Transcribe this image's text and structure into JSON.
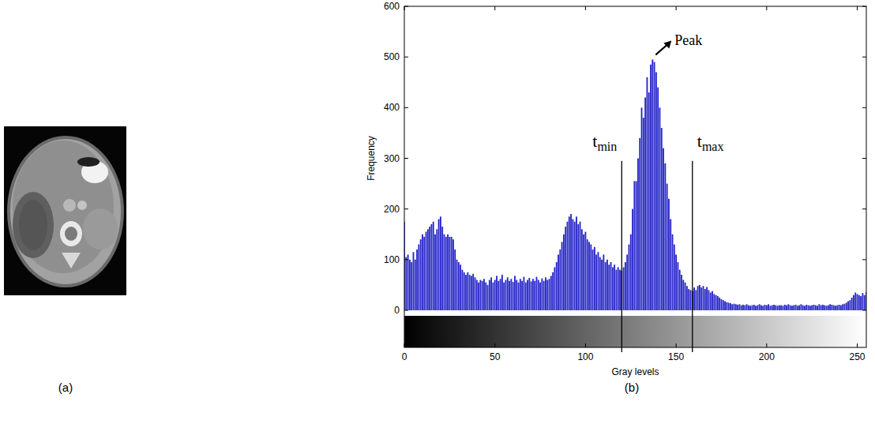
{
  "image": {
    "label": "(a)"
  },
  "chart_data": {
    "type": "histogram",
    "label": "(b)",
    "x_label": "Gray levels",
    "y_label": "Frequency",
    "color": "#2424c8",
    "xlim": [
      0,
      255
    ],
    "ylim": [
      0,
      600
    ],
    "xticks": [
      0,
      50,
      100,
      150,
      200,
      250
    ],
    "yticks": [
      0,
      100,
      200,
      300,
      400,
      500,
      600
    ],
    "annotations": [
      {
        "text": "t",
        "subscript": "min",
        "x": 120
      },
      {
        "text": "t",
        "subscript": "max",
        "x": 159
      },
      {
        "text": "Peak",
        "x": 137,
        "y": 495
      }
    ],
    "x": [
      0,
      1,
      2,
      3,
      4,
      5,
      6,
      7,
      8,
      9,
      10,
      11,
      12,
      13,
      14,
      15,
      16,
      17,
      18,
      19,
      20,
      21,
      22,
      23,
      24,
      25,
      26,
      27,
      28,
      29,
      30,
      31,
      32,
      33,
      34,
      35,
      36,
      37,
      38,
      39,
      40,
      41,
      42,
      43,
      44,
      45,
      46,
      47,
      48,
      49,
      50,
      51,
      52,
      53,
      54,
      55,
      56,
      57,
      58,
      59,
      60,
      61,
      62,
      63,
      64,
      65,
      66,
      67,
      68,
      69,
      70,
      71,
      72,
      73,
      74,
      75,
      76,
      77,
      78,
      79,
      80,
      81,
      82,
      83,
      84,
      85,
      86,
      87,
      88,
      89,
      90,
      91,
      92,
      93,
      94,
      95,
      96,
      97,
      98,
      99,
      100,
      101,
      102,
      103,
      104,
      105,
      106,
      107,
      108,
      109,
      110,
      111,
      112,
      113,
      114,
      115,
      116,
      117,
      118,
      119,
      120,
      121,
      122,
      123,
      124,
      125,
      126,
      127,
      128,
      129,
      130,
      131,
      132,
      133,
      134,
      135,
      136,
      137,
      138,
      139,
      140,
      141,
      142,
      143,
      144,
      145,
      146,
      147,
      148,
      149,
      150,
      151,
      152,
      153,
      154,
      155,
      156,
      157,
      158,
      159,
      160,
      161,
      162,
      163,
      164,
      165,
      166,
      167,
      168,
      169,
      170,
      171,
      172,
      173,
      174,
      175,
      176,
      177,
      178,
      179,
      180,
      181,
      182,
      183,
      184,
      185,
      186,
      187,
      188,
      189,
      190,
      191,
      192,
      193,
      194,
      195,
      196,
      197,
      198,
      199,
      200,
      201,
      202,
      203,
      204,
      205,
      206,
      207,
      208,
      209,
      210,
      211,
      212,
      213,
      214,
      215,
      216,
      217,
      218,
      219,
      220,
      221,
      222,
      223,
      224,
      225,
      226,
      227,
      228,
      229,
      230,
      231,
      232,
      233,
      234,
      235,
      236,
      237,
      238,
      239,
      240,
      241,
      242,
      243,
      244,
      245,
      246,
      247,
      248,
      249,
      250,
      251,
      252,
      253,
      254,
      255
    ],
    "values": [
      175,
      105,
      110,
      100,
      95,
      115,
      100,
      120,
      130,
      140,
      150,
      145,
      155,
      160,
      165,
      170,
      175,
      150,
      160,
      180,
      185,
      165,
      150,
      145,
      150,
      145,
      145,
      140,
      120,
      100,
      95,
      90,
      80,
      75,
      70,
      75,
      70,
      68,
      72,
      65,
      60,
      55,
      60,
      58,
      62,
      55,
      50,
      60,
      65,
      55,
      60,
      68,
      58,
      62,
      70,
      55,
      60,
      65,
      58,
      62,
      56,
      68,
      60,
      55,
      62,
      58,
      66,
      55,
      60,
      64,
      57,
      62,
      58,
      66,
      60,
      55,
      63,
      58,
      65,
      60,
      62,
      68,
      75,
      85,
      95,
      110,
      120,
      135,
      150,
      165,
      175,
      185,
      190,
      180,
      175,
      185,
      170,
      175,
      160,
      150,
      155,
      140,
      135,
      130,
      120,
      125,
      110,
      115,
      105,
      100,
      110,
      95,
      100,
      90,
      95,
      85,
      90,
      80,
      85,
      80,
      78,
      85,
      95,
      110,
      130,
      150,
      200,
      255,
      255,
      300,
      340,
      400,
      380,
      420,
      460,
      430,
      485,
      495,
      490,
      470,
      440,
      400,
      360,
      320,
      290,
      250,
      220,
      180,
      150,
      130,
      110,
      95,
      80,
      70,
      60,
      55,
      48,
      42,
      40,
      38,
      45,
      40,
      48,
      50,
      45,
      48,
      42,
      46,
      40,
      35,
      38,
      32,
      30,
      28,
      25,
      22,
      20,
      18,
      16,
      15,
      14,
      12,
      13,
      12,
      11,
      12,
      10,
      11,
      10,
      12,
      10,
      9,
      10,
      11,
      9,
      10,
      12,
      10,
      9,
      11,
      10,
      12,
      9,
      10,
      11,
      10,
      9,
      10,
      10,
      9,
      11,
      10,
      12,
      10,
      9,
      10,
      11,
      9,
      10,
      12,
      10,
      9,
      11,
      10,
      9,
      10,
      11,
      10,
      9,
      12,
      10,
      11,
      10,
      9,
      10,
      12,
      11,
      10,
      9,
      10,
      11,
      10,
      12,
      13,
      15,
      18,
      20,
      25,
      30,
      35,
      32,
      30,
      28,
      34,
      30,
      36
    ]
  }
}
